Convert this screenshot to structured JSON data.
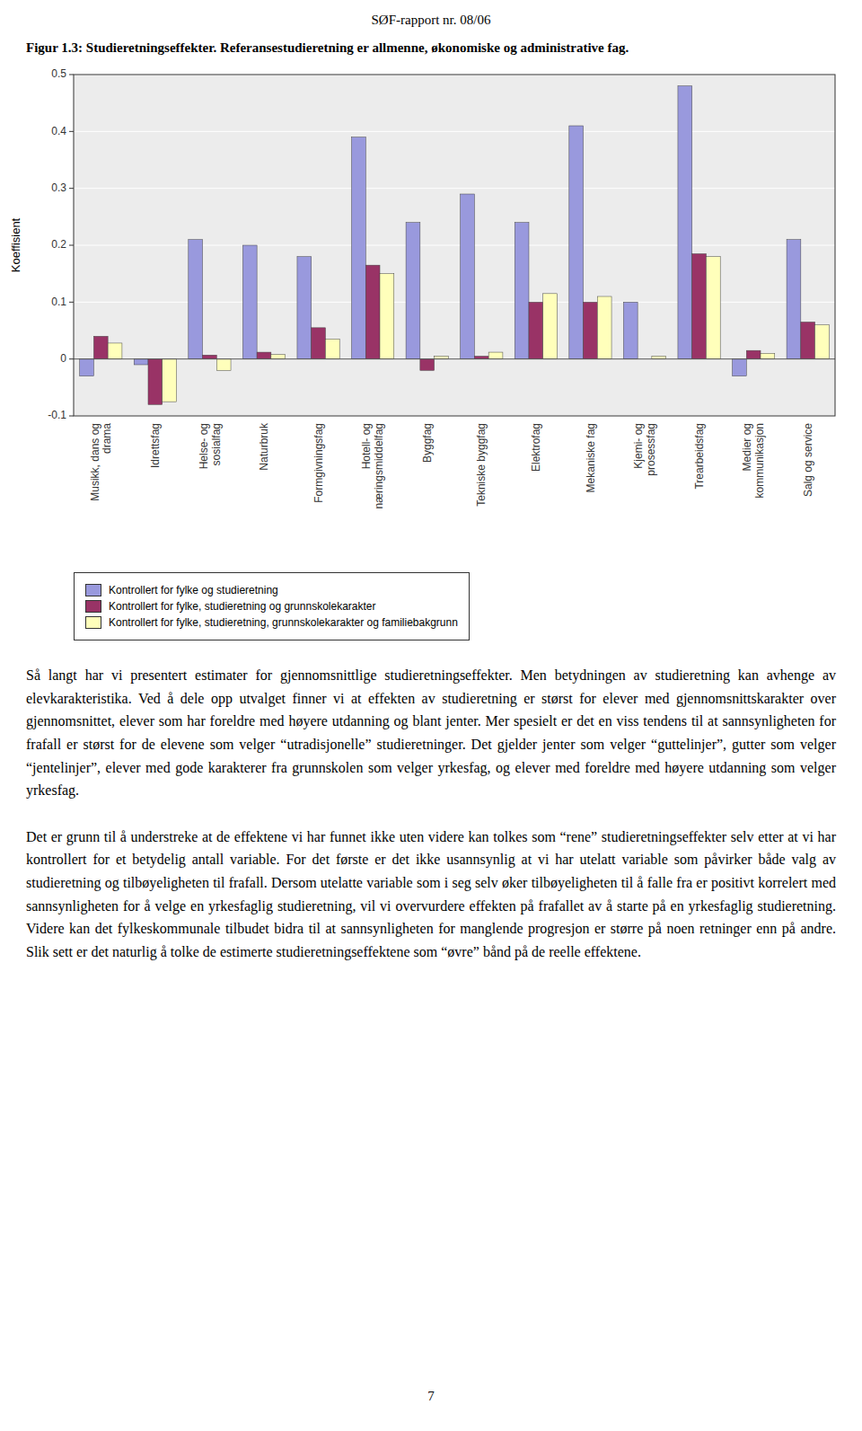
{
  "chart_data": {
    "type": "bar",
    "title": "Figur 1.3: Studieretningseffekter. Referansestudieretning er allmenne, økonomiske og administrative fag.",
    "y_label": "Koeffisient",
    "ylim": [
      -0.1,
      0.5
    ],
    "yticks": [
      -0.1,
      0,
      0.1,
      0.2,
      0.3,
      0.4,
      0.5
    ],
    "grid": true,
    "legend": "bottom",
    "categories": [
      "Musikk, dans og\ndrama",
      "Idrettsfag",
      "Helse- og\nsosialfag",
      "Naturbruk",
      "Formgivningsfag",
      "Hotell- og\nnæringsmiddelfag",
      "Byggfag",
      "Tekniske byggfag",
      "Elektrofag",
      "Mekaniske fag",
      "Kjemi- og\nprosessfag",
      "Trearbeidsfag",
      "Medier og\nkommunikasjon",
      "Salg og service"
    ],
    "series": [
      {
        "name": "Kontrollert for fylke og studieretning",
        "color": "#9999DD",
        "values": [
          -0.03,
          -0.01,
          0.21,
          0.2,
          0.18,
          0.39,
          0.24,
          0.29,
          0.24,
          0.41,
          0.1,
          0.48,
          -0.03,
          0.21
        ]
      },
      {
        "name": "Kontrollert for fylke, studieretning og grunnskolekarakter",
        "color": "#993366",
        "values": [
          0.04,
          -0.08,
          0.007,
          0.012,
          0.055,
          0.165,
          -0.02,
          0.005,
          0.1,
          0.1,
          0.0,
          0.185,
          0.015,
          0.065
        ]
      },
      {
        "name": "Kontrollert for fylke, studieretning, grunnskolekarakter og familiebakgrunn",
        "color": "#FFFFBB",
        "values": [
          0.028,
          -0.075,
          -0.02,
          0.008,
          0.035,
          0.15,
          0.005,
          0.012,
          0.115,
          0.11,
          0.005,
          0.18,
          0.01,
          0.06
        ]
      }
    ]
  },
  "page": {
    "header": "SØF-rapport nr. 08/06",
    "paragraphs": [
      "Så langt har vi presentert estimater for gjennomsnittlige studieretningseffekter. Men betydningen av studieretning kan avhenge av elevkarakteristika. Ved å dele opp utvalget finner vi at effekten av studieretning er størst for elever med gjennomsnittskarakter over gjennomsnittet, elever som har foreldre med høyere utdanning og blant jenter. Mer spesielt er det en viss tendens til at sannsynligheten for frafall er størst for de elevene som velger “utradisjonelle” studieretninger. Det gjelder jenter som velger “guttelinjer”, gutter som velger “jentelinjer”, elever med gode karakterer fra grunnskolen som velger yrkesfag, og elever med foreldre med høyere utdanning som velger yrkesfag.",
      "Det er grunn til å understreke at de effektene vi har funnet ikke uten videre kan tolkes som “rene” studieretningseffekter selv etter at vi har kontrollert for et betydelig antall variable. For det første er det ikke usannsynlig at vi har utelatt variable som påvirker både valg av studieretning og tilbøyeligheten til frafall. Dersom utelatte variable som i seg selv øker tilbøyeligheten til å falle fra er positivt korrelert med sannsynligheten for å velge en yrkesfaglig studieretning, vil vi overvurdere effekten på frafallet av å starte på en yrkesfaglig studieretning. Videre kan det fylkeskommunale tilbudet bidra til at sannsynligheten for manglende progresjon er større på noen retninger enn på andre. Slik sett er det naturlig å tolke de estimerte studieretningseffektene som “øvre” bånd på de reelle effektene."
    ],
    "page_number": "7"
  }
}
